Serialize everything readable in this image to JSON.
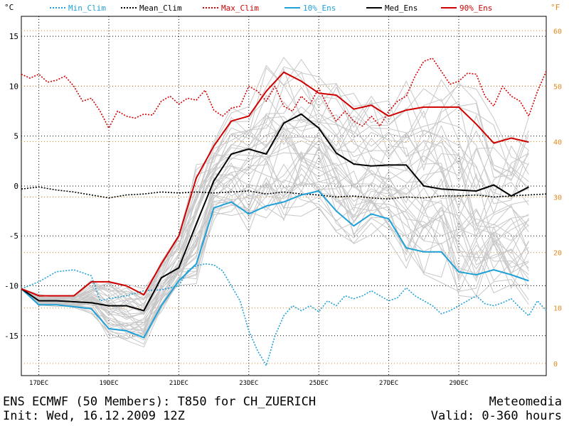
{
  "footer": {
    "title": "ENS ECMWF (50 Members): T850 for CH_ZUERICH",
    "init": "Init: Wed, 16.12.2009 12Z",
    "source": "Meteomedia",
    "valid": "Valid: 0-360 hours"
  },
  "colors": {
    "min_clim": "#1fa0d8",
    "mean_clim": "#000000",
    "max_clim": "#d00000",
    "p10": "#1fa0d8",
    "median": "#000000",
    "p90": "#d00000",
    "members": "#c8c8c8",
    "left_axis": "#000000",
    "right_axis": "#e08a1e",
    "c_grid": "#000000",
    "f_grid": "#e08a1e"
  },
  "chart_data": {
    "type": "line",
    "y_unit_left": "°C",
    "y_unit_right": "°F",
    "xlim": [
      0,
      360
    ],
    "ylim": [
      -19,
      17
    ],
    "x_tick_labels": [
      {
        "hour": 12,
        "label": "17DEC"
      },
      {
        "hour": 60,
        "label": "19DEC"
      },
      {
        "hour": 108,
        "label": "21DEC"
      },
      {
        "hour": 156,
        "label": "23DEC"
      },
      {
        "hour": 204,
        "label": "25DEC"
      },
      {
        "hour": 252,
        "label": "27DEC"
      },
      {
        "hour": 300,
        "label": "29DEC"
      }
    ],
    "y_ticks_c": [
      -15,
      -10,
      -5,
      0,
      5,
      10,
      15
    ],
    "y_ticks_f": [
      0,
      10,
      20,
      30,
      40,
      50,
      60
    ],
    "grid": true,
    "legend": [
      "Min_Clim",
      "Mean_Clim",
      "Max_Clim",
      "10%_Ens",
      "Med_Ens",
      "90%_Ens"
    ],
    "series": [
      {
        "name": "Min_Clim",
        "style": "dotted",
        "x": [
          0,
          12,
          24,
          36,
          48,
          54,
          60,
          72,
          84,
          96,
          108,
          114,
          120,
          126,
          132,
          138,
          144,
          150,
          156,
          162,
          168,
          174,
          180,
          186,
          192,
          198,
          204,
          210,
          216,
          222,
          228,
          234,
          240,
          246,
          252,
          258,
          264,
          270,
          276,
          282,
          288,
          294,
          300,
          306,
          312,
          318,
          324,
          330,
          336,
          342,
          348,
          354,
          360
        ],
        "y": [
          -10.3,
          -9.6,
          -8.6,
          -8.4,
          -9.0,
          -11.5,
          -11.3,
          -11.0,
          -10.5,
          -10.4,
          -10.0,
          -8.5,
          -8.0,
          -7.8,
          -7.9,
          -8.5,
          -10.0,
          -11.5,
          -14.5,
          -16.5,
          -18.0,
          -15.0,
          -13.0,
          -12.0,
          -12.5,
          -12.0,
          -12.6,
          -11.5,
          -12.0,
          -11.0,
          -11.3,
          -11.0,
          -10.5,
          -11.0,
          -11.5,
          -11.2,
          -10.2,
          -11.0,
          -11.5,
          -12.0,
          -12.8,
          -12.5,
          -12.0,
          -11.5,
          -11.0,
          -11.8,
          -12.0,
          -11.7,
          -11.3,
          -12.2,
          -13.0,
          -11.5,
          -12.5
        ]
      },
      {
        "name": "Mean_Clim",
        "style": "dotted",
        "x": [
          0,
          12,
          24,
          36,
          48,
          60,
          72,
          84,
          96,
          108,
          120,
          132,
          144,
          156,
          168,
          180,
          192,
          204,
          216,
          228,
          240,
          252,
          264,
          276,
          288,
          300,
          312,
          324,
          336,
          348,
          360
        ],
        "y": [
          -0.3,
          -0.1,
          -0.4,
          -0.6,
          -0.9,
          -1.2,
          -0.9,
          -0.8,
          -0.6,
          -0.7,
          -0.6,
          -0.7,
          -0.6,
          -0.5,
          -0.8,
          -0.6,
          -0.8,
          -0.9,
          -1.1,
          -1.0,
          -1.2,
          -1.3,
          -1.1,
          -1.2,
          -1.0,
          -1.0,
          -0.9,
          -1.1,
          -1.0,
          -0.9,
          -0.8
        ]
      },
      {
        "name": "Max_Clim",
        "style": "dotted",
        "x": [
          0,
          6,
          12,
          18,
          24,
          30,
          36,
          42,
          48,
          54,
          60,
          66,
          72,
          78,
          84,
          90,
          96,
          102,
          108,
          114,
          120,
          126,
          132,
          138,
          144,
          150,
          156,
          162,
          168,
          174,
          180,
          186,
          192,
          198,
          204,
          210,
          216,
          222,
          228,
          234,
          240,
          246,
          252,
          258,
          264,
          270,
          276,
          282,
          288,
          294,
          300,
          306,
          312,
          318,
          324,
          330,
          336,
          342,
          348,
          354,
          360
        ],
        "y": [
          11.2,
          10.8,
          11.2,
          10.4,
          10.6,
          11.0,
          10.0,
          8.5,
          8.8,
          7.5,
          5.8,
          7.5,
          7.0,
          6.8,
          7.2,
          7.1,
          8.5,
          9.0,
          8.2,
          8.8,
          8.6,
          9.6,
          7.6,
          7.0,
          7.8,
          8.0,
          10.0,
          9.5,
          8.5,
          10.0,
          8.0,
          7.5,
          9.0,
          8.2,
          9.8,
          8.0,
          6.5,
          7.5,
          6.5,
          6.0,
          7.0,
          6.0,
          7.5,
          8.5,
          9.0,
          11.0,
          12.5,
          12.8,
          11.5,
          10.2,
          10.5,
          11.3,
          11.2,
          9.0,
          8.0,
          10.0,
          9.0,
          8.5,
          7.0,
          9.5,
          11.5
        ]
      },
      {
        "name": "10%_Ens",
        "style": "solid",
        "x": [
          0,
          12,
          24,
          36,
          48,
          60,
          72,
          84,
          96,
          108,
          120,
          132,
          144,
          156,
          168,
          180,
          192,
          204,
          216,
          228,
          240,
          252,
          264,
          276,
          288,
          300,
          312,
          324,
          336,
          348
        ],
        "y": [
          -10.3,
          -11.9,
          -11.9,
          -12.1,
          -12.3,
          -14.3,
          -14.5,
          -15.2,
          -12.0,
          -9.5,
          -7.8,
          -2.2,
          -1.6,
          -2.8,
          -2.0,
          -1.6,
          -0.9,
          -0.5,
          -2.5,
          -4.0,
          -2.8,
          -3.3,
          -6.2,
          -6.6,
          -6.6,
          -8.6,
          -8.9,
          -8.4,
          -8.9,
          -9.5
        ]
      },
      {
        "name": "Med_Ens",
        "style": "solid",
        "x": [
          0,
          12,
          24,
          36,
          48,
          60,
          72,
          84,
          96,
          108,
          120,
          132,
          144,
          156,
          168,
          180,
          192,
          204,
          216,
          228,
          240,
          252,
          264,
          276,
          288,
          300,
          312,
          324,
          336,
          348
        ],
        "y": [
          -10.3,
          -11.5,
          -11.5,
          -11.6,
          -11.7,
          -12.0,
          -12.0,
          -12.5,
          -9.2,
          -8.2,
          -3.8,
          0.5,
          3.2,
          3.7,
          3.2,
          6.3,
          7.2,
          5.8,
          3.3,
          2.2,
          2.0,
          2.1,
          2.1,
          0.0,
          -0.3,
          -0.4,
          -0.5,
          0.1,
          -1.0,
          -0.1
        ]
      },
      {
        "name": "90%_Ens",
        "style": "solid",
        "x": [
          0,
          12,
          24,
          36,
          48,
          60,
          72,
          84,
          96,
          108,
          120,
          132,
          144,
          156,
          168,
          180,
          192,
          204,
          216,
          228,
          240,
          252,
          264,
          276,
          288,
          300,
          312,
          324,
          336,
          348
        ],
        "y": [
          -10.3,
          -11.0,
          -11.0,
          -11.0,
          -9.6,
          -9.6,
          -10.0,
          -10.9,
          -7.8,
          -5.0,
          0.8,
          4.0,
          6.5,
          7.0,
          9.5,
          11.4,
          10.5,
          9.3,
          9.1,
          7.7,
          8.1,
          7.0,
          7.6,
          7.9,
          7.9,
          7.9,
          6.2,
          4.3,
          4.8,
          4.4
        ]
      }
    ]
  }
}
